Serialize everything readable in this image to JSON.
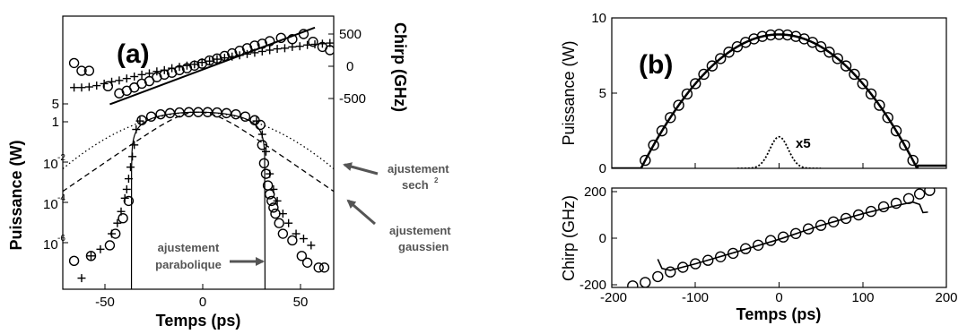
{
  "chart_data": [
    {
      "panel": "(a)",
      "type": "scatter",
      "xlabel": "Temps (ps)",
      "ylabel_left": "Puissance (W)",
      "ylabel_right": "Chirp (GHz)",
      "x_ticks": [
        -50,
        0,
        50
      ],
      "xlim": [
        -72,
        72
      ],
      "ylim_power_log10": [
        -7.5,
        0.85
      ],
      "y_power_ticks": [
        {
          "label": "5",
          "value": 5
        },
        {
          "label": "1",
          "value": 1
        },
        {
          "label": "10",
          "exp": "-2",
          "value": 0.01
        },
        {
          "label": "10",
          "exp": "-4",
          "value": 0.0001
        },
        {
          "label": "10",
          "exp": "-6",
          "value": 1e-06
        }
      ],
      "y_chirp_ticks": [
        500,
        0,
        -500
      ],
      "ylim_chirp": [
        -900,
        600
      ],
      "annotations": {
        "sech": "ajustement",
        "sech_sub": "sech",
        "sech_sup": "2",
        "gauss1": "ajustement",
        "gauss2": "gaussien",
        "parab1": "ajustement",
        "parab2": "parabolique"
      },
      "chirp_circles": [
        {
          "x": -66,
          "y": 50
        },
        {
          "x": -62,
          "y": -70
        },
        {
          "x": -58,
          "y": -70
        },
        {
          "x": -48,
          "y": -310
        },
        {
          "x": -42,
          "y": -420
        },
        {
          "x": -38,
          "y": -380
        },
        {
          "x": -34,
          "y": -330
        },
        {
          "x": -30,
          "y": -270
        },
        {
          "x": -26,
          "y": -230
        },
        {
          "x": -22,
          "y": -170
        },
        {
          "x": -18,
          "y": -130
        },
        {
          "x": -14,
          "y": -100
        },
        {
          "x": -10,
          "y": -60
        },
        {
          "x": -6,
          "y": -30
        },
        {
          "x": -2,
          "y": 10
        },
        {
          "x": 2,
          "y": 40
        },
        {
          "x": 6,
          "y": 90
        },
        {
          "x": 10,
          "y": 120
        },
        {
          "x": 14,
          "y": 160
        },
        {
          "x": 18,
          "y": 200
        },
        {
          "x": 22,
          "y": 240
        },
        {
          "x": 26,
          "y": 280
        },
        {
          "x": 30,
          "y": 320
        },
        {
          "x": 34,
          "y": 350
        },
        {
          "x": 38,
          "y": 390
        },
        {
          "x": 44,
          "y": 440
        },
        {
          "x": 50,
          "y": 420
        },
        {
          "x": 56,
          "y": 500
        },
        {
          "x": 61,
          "y": 380
        },
        {
          "x": 66,
          "y": 300
        },
        {
          "x": 70,
          "y": 250
        }
      ],
      "chirp_crosses": [
        {
          "x": -66,
          "y": -330
        },
        {
          "x": -62,
          "y": -330
        },
        {
          "x": -58,
          "y": -320
        },
        {
          "x": -54,
          "y": -300
        },
        {
          "x": -50,
          "y": -270
        },
        {
          "x": -46,
          "y": -240
        },
        {
          "x": -42,
          "y": -220
        },
        {
          "x": -38,
          "y": -190
        },
        {
          "x": -34,
          "y": -160
        },
        {
          "x": -30,
          "y": -130
        },
        {
          "x": -26,
          "y": -110
        },
        {
          "x": -22,
          "y": -80
        },
        {
          "x": -18,
          "y": -60
        },
        {
          "x": -14,
          "y": -30
        },
        {
          "x": -10,
          "y": -10
        },
        {
          "x": -6,
          "y": 10
        },
        {
          "x": -2,
          "y": 30
        },
        {
          "x": 2,
          "y": 60
        },
        {
          "x": 6,
          "y": 80
        },
        {
          "x": 10,
          "y": 110
        },
        {
          "x": 14,
          "y": 130
        },
        {
          "x": 18,
          "y": 150
        },
        {
          "x": 22,
          "y": 170
        },
        {
          "x": 26,
          "y": 190
        },
        {
          "x": 30,
          "y": 210
        },
        {
          "x": 34,
          "y": 230
        },
        {
          "x": 38,
          "y": 250
        },
        {
          "x": 42,
          "y": 270
        },
        {
          "x": 46,
          "y": 280
        },
        {
          "x": 50,
          "y": 300
        },
        {
          "x": 54,
          "y": 310
        },
        {
          "x": 58,
          "y": 330
        },
        {
          "x": 62,
          "y": 340
        },
        {
          "x": 66,
          "y": 350
        },
        {
          "x": 70,
          "y": 360
        }
      ],
      "chirp_fit_line": [
        {
          "x": -47,
          "y": -590
        },
        {
          "x": 62,
          "y": 600
        }
      ],
      "power_circles": [
        {
          "x": -30,
          "y": 1.3
        },
        {
          "x": -25,
          "y": 1.9
        },
        {
          "x": -20,
          "y": 2.4
        },
        {
          "x": -15,
          "y": 2.7
        },
        {
          "x": -10,
          "y": 2.9
        },
        {
          "x": -5,
          "y": 3.0
        },
        {
          "x": 0,
          "y": 3.0
        },
        {
          "x": 5,
          "y": 3.0
        },
        {
          "x": 10,
          "y": 2.9
        },
        {
          "x": 15,
          "y": 2.7
        },
        {
          "x": 20,
          "y": 2.4
        },
        {
          "x": 25,
          "y": 1.9
        },
        {
          "x": 30,
          "y": 1.3
        },
        {
          "x": 33,
          "y": 0.8
        },
        {
          "x": 34,
          "y": 0.1
        },
        {
          "x": 35,
          "y": 0.015
        },
        {
          "x": 36,
          "y": 0.005
        },
        {
          "x": 37,
          "y": 0.0015
        },
        {
          "x": 38,
          "y": 0.0006
        },
        {
          "x": 39,
          "y": 0.0003
        },
        {
          "x": 40,
          "y": 0.00015
        },
        {
          "x": 41,
          "y": 8e-05
        },
        {
          "x": 43,
          "y": 3e-05
        },
        {
          "x": 45,
          "y": 1e-05
        },
        {
          "x": 50,
          "y": 5e-06
        },
        {
          "x": 55,
          "y": 1e-06
        },
        {
          "x": 58,
          "y": 5e-07
        },
        {
          "x": 64,
          "y": 3e-07
        },
        {
          "x": 67,
          "y": 3e-07
        },
        {
          "x": -37,
          "y": 0.0003
        },
        {
          "x": -40,
          "y": 5e-05
        },
        {
          "x": -44,
          "y": 1e-05
        },
        {
          "x": -47,
          "y": 3e-06
        },
        {
          "x": -57,
          "y": 1e-06
        },
        {
          "x": -66,
          "y": 6e-07
        }
      ],
      "power_crosses": [
        {
          "x": -31,
          "y": 1.2
        },
        {
          "x": -33,
          "y": 0.5
        },
        {
          "x": -34,
          "y": 0.1
        },
        {
          "x": -35,
          "y": 0.03
        },
        {
          "x": -36,
          "y": 0.01
        },
        {
          "x": -37,
          "y": 0.003
        },
        {
          "x": -38,
          "y": 0.001
        },
        {
          "x": -39,
          "y": 0.0004
        },
        {
          "x": -41,
          "y": 0.0001
        },
        {
          "x": -43,
          "y": 3e-05
        },
        {
          "x": -46,
          "y": 1e-05
        },
        {
          "x": -52,
          "y": 2e-06
        },
        {
          "x": -57,
          "y": 1e-06
        },
        {
          "x": -62,
          "y": 1e-07
        },
        {
          "x": 31,
          "y": 1.2
        },
        {
          "x": 34,
          "y": 0.3
        },
        {
          "x": 36,
          "y": 0.05
        },
        {
          "x": 38,
          "y": 0.005
        },
        {
          "x": 40,
          "y": 0.001
        },
        {
          "x": 42,
          "y": 0.0003
        },
        {
          "x": 45,
          "y": 8e-05
        },
        {
          "x": 48,
          "y": 3e-05
        },
        {
          "x": 52,
          "y": 1e-05
        },
        {
          "x": 56,
          "y": 6e-06
        },
        {
          "x": 60,
          "y": 3e-06
        }
      ],
      "parabolic_fit": {
        "peak": 3.0,
        "half_width": 35.5
      },
      "sech_fit": {
        "peak": 3.0,
        "T0": 15
      },
      "gauss_fit": {
        "peak": 3.0,
        "sigma": 21
      }
    },
    {
      "panel": "(b)",
      "type": "line",
      "xlabel": "Temps (ps)",
      "x_ticks": [
        -200,
        -100,
        0,
        100,
        200
      ],
      "xlim": [
        -200,
        200
      ],
      "top": {
        "ylabel": "Puissance (W)",
        "y_ticks": [
          0,
          5,
          10
        ],
        "ylim": [
          0,
          10
        ],
        "parabola": {
          "peak": 8.9,
          "half_width": 165
        },
        "circles_x": [
          -160,
          -150,
          -140,
          -130,
          -120,
          -110,
          -100,
          -90,
          -80,
          -70,
          -60,
          -50,
          -40,
          -30,
          -20,
          -10,
          0,
          10,
          20,
          30,
          40,
          50,
          60,
          70,
          80,
          90,
          100,
          110,
          120,
          130,
          140,
          150,
          160
        ],
        "input_pulse": {
          "label": "x5",
          "peak": 2.1,
          "width": 11
        }
      },
      "bottom": {
        "ylabel": "Chirp (GHz)",
        "y_ticks": [
          -200,
          0,
          200
        ],
        "ylim": [
          -200,
          215
        ],
        "circles": [
          {
            "x": -175,
            "y": -205
          },
          {
            "x": -160,
            "y": -190
          },
          {
            "x": -145,
            "y": -165
          },
          {
            "x": -130,
            "y": -145
          },
          {
            "x": -115,
            "y": -125
          },
          {
            "x": -100,
            "y": -110
          },
          {
            "x": -85,
            "y": -95
          },
          {
            "x": -70,
            "y": -80
          },
          {
            "x": -55,
            "y": -65
          },
          {
            "x": -40,
            "y": -45
          },
          {
            "x": -25,
            "y": -30
          },
          {
            "x": -10,
            "y": -10
          },
          {
            "x": 5,
            "y": 5
          },
          {
            "x": 20,
            "y": 20
          },
          {
            "x": 35,
            "y": 40
          },
          {
            "x": 50,
            "y": 55
          },
          {
            "x": 65,
            "y": 70
          },
          {
            "x": 80,
            "y": 85
          },
          {
            "x": 95,
            "y": 100
          },
          {
            "x": 110,
            "y": 115
          },
          {
            "x": 125,
            "y": 135
          },
          {
            "x": 140,
            "y": 150
          },
          {
            "x": 155,
            "y": 170
          },
          {
            "x": 168,
            "y": 190
          },
          {
            "x": 180,
            "y": 205
          }
        ],
        "curve": [
          {
            "x": -145,
            "y": -90
          },
          {
            "x": -140,
            "y": -130
          },
          {
            "x": -130,
            "y": -138
          },
          {
            "x": -100,
            "y": -110
          },
          {
            "x": -50,
            "y": -58
          },
          {
            "x": 0,
            "y": -5
          },
          {
            "x": 50,
            "y": 55
          },
          {
            "x": 100,
            "y": 105
          },
          {
            "x": 140,
            "y": 140
          },
          {
            "x": 160,
            "y": 155
          },
          {
            "x": 168,
            "y": 145
          },
          {
            "x": 172,
            "y": 110
          },
          {
            "x": 178,
            "y": 112
          }
        ]
      }
    }
  ]
}
